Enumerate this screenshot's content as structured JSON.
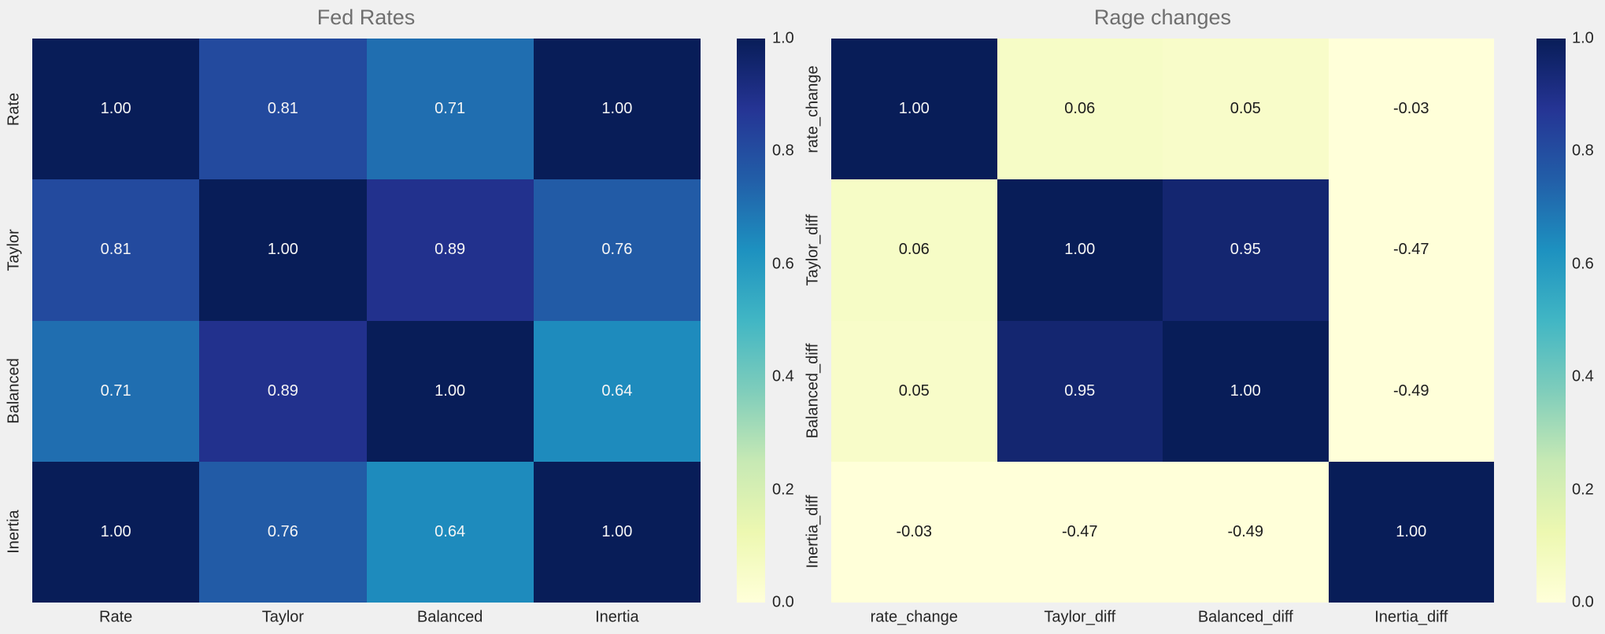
{
  "figure": {
    "background": "#f0f0f0",
    "title_color": "#6f6f6f",
    "tick_color": "#262626",
    "annotation_light": "#f5f5f5",
    "annotation_dark": "#1c1c1c"
  },
  "colormap": {
    "name": "YlGnBu",
    "stops": [
      {
        "t": 0.0,
        "c": "#ffffd9"
      },
      {
        "t": 0.125,
        "c": "#edf8b1"
      },
      {
        "t": 0.25,
        "c": "#c7e9b4"
      },
      {
        "t": 0.375,
        "c": "#7fcdbb"
      },
      {
        "t": 0.5,
        "c": "#41b6c4"
      },
      {
        "t": 0.625,
        "c": "#1d91c0"
      },
      {
        "t": 0.75,
        "c": "#225ea8"
      },
      {
        "t": 0.875,
        "c": "#253494"
      },
      {
        "t": 1.0,
        "c": "#081d58"
      }
    ]
  },
  "chart_data": [
    {
      "type": "heatmap",
      "title": "Fed Rates",
      "x_tick_labels": [
        "Rate",
        "Taylor",
        "Balanced",
        "Inertia"
      ],
      "y_tick_labels": [
        "Rate",
        "Taylor",
        "Balanced",
        "Inertia"
      ],
      "values": [
        [
          1.0,
          0.81,
          0.71,
          1.0
        ],
        [
          0.81,
          1.0,
          0.89,
          0.76
        ],
        [
          0.71,
          0.89,
          1.0,
          0.64
        ],
        [
          1.0,
          0.76,
          0.64,
          1.0
        ]
      ],
      "annotation_decimals": 2,
      "colorbar": {
        "vmin": 0.0,
        "vmax": 1.0,
        "tick_labels": [
          "1.0",
          "0.8",
          "0.6",
          "0.4",
          "0.2",
          "0.0"
        ]
      }
    },
    {
      "type": "heatmap",
      "title": "Rage changes",
      "x_tick_labels": [
        "rate_change",
        "Taylor_diff",
        "Balanced_diff",
        "Inertia_diff"
      ],
      "y_tick_labels": [
        "rate_change",
        "Taylor_diff",
        "Balanced_diff",
        "Inertia_diff"
      ],
      "values": [
        [
          1.0,
          0.06,
          0.05,
          -0.03
        ],
        [
          0.06,
          1.0,
          0.95,
          -0.47
        ],
        [
          0.05,
          0.95,
          1.0,
          -0.49
        ],
        [
          -0.03,
          -0.47,
          -0.49,
          1.0
        ]
      ],
      "annotation_decimals": 2,
      "colorbar": {
        "vmin": 0.0,
        "vmax": 1.0,
        "tick_labels": [
          "1.0",
          "0.8",
          "0.6",
          "0.4",
          "0.2",
          "0.0"
        ]
      }
    }
  ]
}
